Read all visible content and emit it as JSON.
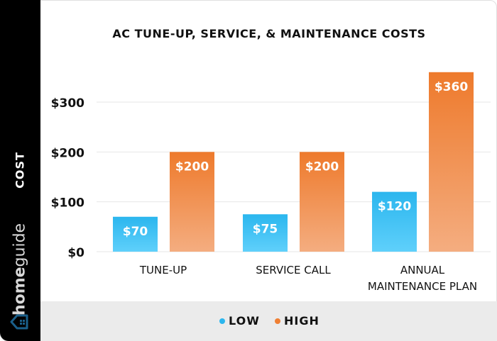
{
  "chart_data": {
    "type": "bar",
    "title": "AC TUNE-UP, SERVICE, & MAINTENANCE COSTS",
    "ylabel": "COST",
    "xlabel": "",
    "categories": [
      [
        "TUNE-UP"
      ],
      [
        "SERVICE CALL"
      ],
      [
        "ANNUAL",
        "MAINTENANCE PLAN"
      ]
    ],
    "series": [
      {
        "name": "LOW",
        "values": [
          70,
          75,
          120
        ],
        "labels": [
          "$70",
          "$75",
          "$120"
        ],
        "color": "#2bb6ee"
      },
      {
        "name": "HIGH",
        "values": [
          200,
          200,
          360
        ],
        "labels": [
          "$200",
          "$200",
          "$360"
        ],
        "color": "#ef7f33"
      }
    ],
    "yticks": [
      {
        "v": 0,
        "label": "$0"
      },
      {
        "v": 100,
        "label": "$100"
      },
      {
        "v": 200,
        "label": "$200"
      },
      {
        "v": 300,
        "label": "$300"
      }
    ],
    "ylim": [
      0,
      360
    ],
    "grid": true,
    "legend_position": "bottom"
  },
  "brand": {
    "logo_text_bold": "home",
    "logo_text": "guide",
    "accent": "#1a5f8a"
  }
}
